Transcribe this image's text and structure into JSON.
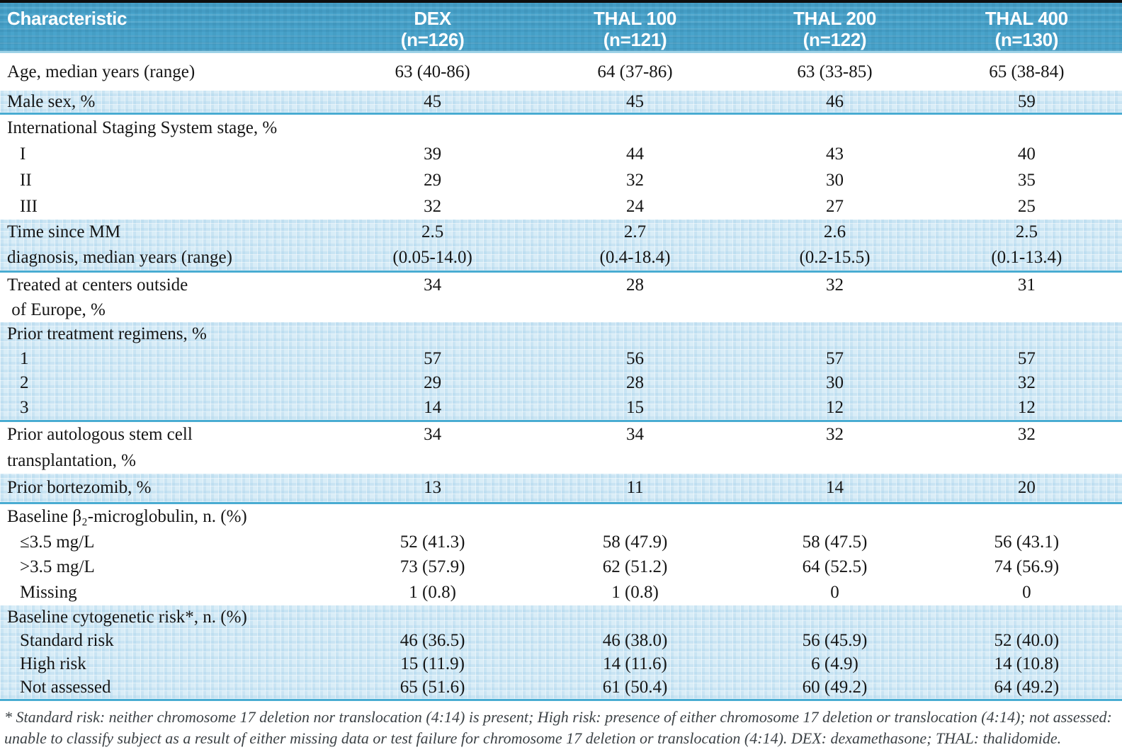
{
  "table": {
    "header": {
      "characteristic": "Characteristic",
      "groups": [
        {
          "name": "DEX",
          "n": "(n=126)"
        },
        {
          "name": "THAL 100",
          "n": "(n=121)"
        },
        {
          "name": "THAL 200",
          "n": "(n=122)"
        },
        {
          "name": "THAL 400",
          "n": "(n=130)"
        }
      ]
    },
    "rows": [
      {
        "kind": "single",
        "shaded": false,
        "label": "Age, median years (range)",
        "values": [
          "63 (40-86)",
          "64 (37-86)",
          "63 (33-85)",
          "65 (38-84)"
        ]
      },
      {
        "kind": "single",
        "shaded": true,
        "label": "Male sex, %",
        "values": [
          "45",
          "45",
          "46",
          "59"
        ]
      },
      {
        "kind": "section",
        "shaded": false,
        "label": "International Staging System stage, %",
        "sub": [
          {
            "label": "I",
            "values": [
              "39",
              "44",
              "43",
              "40"
            ]
          },
          {
            "label": "II",
            "values": [
              "29",
              "32",
              "30",
              "35"
            ]
          },
          {
            "label": "III",
            "values": [
              "32",
              "24",
              "27",
              "25"
            ]
          }
        ]
      },
      {
        "kind": "stacked",
        "shaded": true,
        "label_lines": [
          "Time since MM",
          "diagnosis, median years (range)"
        ],
        "values": [
          [
            "2.5",
            "(0.05-14.0)"
          ],
          [
            "2.7",
            "(0.4-18.4)"
          ],
          [
            "2.6",
            "(0.2-15.5)"
          ],
          [
            "2.5",
            "(0.1-13.4)"
          ]
        ]
      },
      {
        "kind": "toplines",
        "shaded": false,
        "label_lines": [
          "Treated at centers outside",
          " of Europe, %"
        ],
        "values": [
          "34",
          "28",
          "32",
          "31"
        ]
      },
      {
        "kind": "section",
        "shaded": true,
        "label": "Prior treatment regimens, %",
        "sub": [
          {
            "label": "1",
            "values": [
              "57",
              "56",
              "57",
              "57"
            ]
          },
          {
            "label": "2",
            "values": [
              "29",
              "28",
              "30",
              "32"
            ]
          },
          {
            "label": "3",
            "values": [
              "14",
              "15",
              "12",
              "12"
            ]
          }
        ]
      },
      {
        "kind": "toplines",
        "shaded": false,
        "label_lines": [
          "Prior autologous stem cell",
          "transplantation, %"
        ],
        "values": [
          "34",
          "34",
          "32",
          "32"
        ]
      },
      {
        "kind": "single",
        "shaded": true,
        "label": "Prior bortezomib, %",
        "values": [
          "13",
          "11",
          "14",
          "20"
        ]
      },
      {
        "kind": "section",
        "shaded": false,
        "label": "Baseline β₂-microglobulin, n. (%)",
        "sub": [
          {
            "label": "≤3.5 mg/L",
            "values": [
              "52 (41.3)",
              "58 (47.9)",
              "58 (47.5)",
              "56 (43.1)"
            ]
          },
          {
            "label": ">3.5 mg/L",
            "values": [
              "73 (57.9)",
              "62 (51.2)",
              "64 (52.5)",
              "74 (56.9)"
            ]
          },
          {
            "label": "Missing",
            "values": [
              "1 (0.8)",
              "1 (0.8)",
              "0",
              "0"
            ]
          }
        ]
      },
      {
        "kind": "section",
        "shaded": true,
        "label": "Baseline cytogenetic risk*, n. (%)",
        "sub": [
          {
            "label": "Standard risk",
            "values": [
              "46 (36.5)",
              "46 (38.0)",
              "56 (45.9)",
              "52 (40.0)"
            ]
          },
          {
            "label": "High risk",
            "values": [
              "15 (11.9)",
              "14 (11.6)",
              "6 (4.9)",
              "14 (10.8)"
            ]
          },
          {
            "label": "Not assessed",
            "values": [
              "65 (51.6)",
              "61 (50.4)",
              "60 (49.2)",
              "64 (49.2)"
            ]
          }
        ]
      }
    ]
  },
  "footnote": {
    "lines": [
      "* Standard risk: neither chromosome 17 deletion nor translocation (4:14) is present; High risk: presence of either chromosome 17 deletion or translocation (4:14); not assessed:",
      "unable to classify subject as a result of either missing data or test failure for chromosome 17 deletion or translocation (4:14). DEX: dexamethasone; THAL: thalidomide."
    ]
  },
  "colors": {
    "header_blue": "#49a4cc",
    "shaded_blue": "#d9edf7",
    "teal_rule": "#49acd2",
    "header_rule": "#9ed2e7",
    "top_border": "#0d0d0d"
  }
}
